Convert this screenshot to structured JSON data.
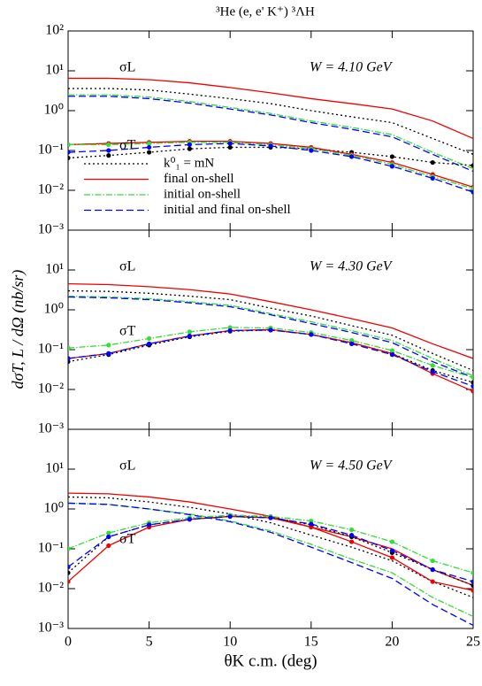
{
  "chart_data": [
    {
      "type": "line",
      "title": "³He (e, e' K⁺) ³ΛH",
      "annotations": [
        "σL",
        "σT",
        "W = 4.10 GeV"
      ],
      "log_y": true,
      "legend": true,
      "x": [
        0,
        2.5,
        5,
        7.5,
        10,
        12.5,
        15,
        17.5,
        20,
        22.5,
        25
      ],
      "xlim": [
        0,
        25
      ],
      "xticks": [
        0,
        5,
        10,
        15,
        20,
        25
      ],
      "ylim": [
        0.001,
        100
      ],
      "yticks": [
        {
          "value": 0.001,
          "label": "10⁻³"
        },
        {
          "value": 0.01,
          "label": "10⁻²"
        },
        {
          "value": 0.1,
          "label": "10⁻¹"
        },
        {
          "value": 1,
          "label": "10⁰"
        },
        {
          "value": 10,
          "label": "10¹"
        },
        {
          "value": 100,
          "label": "10²"
        }
      ],
      "series": [
        {
          "name": "k⁰₁  =  mN",
          "color": "#000000",
          "values": [
            3.6,
            3.6,
            3.3,
            2.6,
            2.0,
            1.5,
            1.0,
            0.7,
            0.5,
            0.2,
            0.08
          ]
        },
        {
          "name": "final on-shell",
          "color": "#ee0000",
          "values": [
            6.5,
            6.5,
            6.0,
            5.0,
            3.8,
            2.8,
            2.0,
            1.5,
            1.1,
            0.55,
            0.2
          ]
        },
        {
          "name": "initial on-shell",
          "color": "#33dd33",
          "values": [
            2.5,
            2.5,
            2.2,
            1.7,
            1.2,
            0.85,
            0.55,
            0.38,
            0.25,
            0.09,
            0.035
          ]
        },
        {
          "name": "initial and final on-shell",
          "color": "#0000ff",
          "values": [
            2.3,
            2.3,
            2.0,
            1.55,
            1.1,
            0.78,
            0.5,
            0.34,
            0.22,
            0.08,
            0.03
          ]
        },
        {
          "color": "#000000",
          "values": [
            0.065,
            0.075,
            0.09,
            0.11,
            0.12,
            0.12,
            0.11,
            0.09,
            0.07,
            0.05,
            0.042
          ]
        },
        {
          "color": "#ee0000",
          "values": [
            0.14,
            0.15,
            0.16,
            0.17,
            0.17,
            0.15,
            0.12,
            0.08,
            0.05,
            0.025,
            0.012
          ]
        },
        {
          "color": "#33dd33",
          "values": [
            0.14,
            0.14,
            0.15,
            0.16,
            0.16,
            0.14,
            0.11,
            0.075,
            0.045,
            0.022,
            0.011
          ]
        },
        {
          "color": "#0000ff",
          "values": [
            0.09,
            0.1,
            0.12,
            0.14,
            0.15,
            0.13,
            0.1,
            0.07,
            0.04,
            0.02,
            0.009
          ]
        }
      ]
    },
    {
      "type": "line",
      "y_label": "dσT, L / dΩ   (nb/sr)",
      "annotations": [
        "σL",
        "σT",
        "W = 4.30 GeV"
      ],
      "log_y": true,
      "legend": false,
      "x": [
        0,
        2.5,
        5,
        7.5,
        10,
        12.5,
        15,
        17.5,
        20,
        22.5,
        25
      ],
      "xlim": [
        0,
        25
      ],
      "xticks": [
        0,
        5,
        10,
        15,
        20,
        25
      ],
      "ylim": [
        0.001,
        100
      ],
      "yticks": [
        {
          "value": 0.001,
          "label": "10⁻³"
        },
        {
          "value": 0.01,
          "label": "10⁻²"
        },
        {
          "value": 0.1,
          "label": "10⁻¹"
        },
        {
          "value": 1,
          "label": "10⁰"
        },
        {
          "value": 10,
          "label": "10¹"
        }
      ],
      "series": [
        {
          "color": "#000000",
          "values": [
            3.0,
            2.9,
            2.6,
            2.2,
            1.8,
            1.1,
            0.7,
            0.4,
            0.23,
            0.08,
            0.03
          ]
        },
        {
          "color": "#ee0000",
          "values": [
            4.5,
            4.3,
            3.8,
            3.2,
            2.5,
            1.6,
            1.0,
            0.6,
            0.35,
            0.14,
            0.06
          ]
        },
        {
          "color": "#33dd33",
          "values": [
            2.2,
            2.1,
            1.9,
            1.6,
            1.3,
            0.8,
            0.5,
            0.3,
            0.17,
            0.06,
            0.022
          ]
        },
        {
          "color": "#0000ff",
          "values": [
            2.1,
            2.0,
            1.8,
            1.5,
            1.2,
            0.75,
            0.45,
            0.27,
            0.15,
            0.05,
            0.02
          ]
        },
        {
          "color": "#000000",
          "values": [
            0.05,
            0.075,
            0.13,
            0.21,
            0.29,
            0.31,
            0.24,
            0.15,
            0.08,
            0.03,
            0.015
          ]
        },
        {
          "color": "#ee0000",
          "values": [
            0.06,
            0.08,
            0.14,
            0.22,
            0.3,
            0.32,
            0.24,
            0.15,
            0.08,
            0.025,
            0.009
          ]
        },
        {
          "color": "#33dd33",
          "values": [
            0.11,
            0.13,
            0.19,
            0.28,
            0.36,
            0.35,
            0.27,
            0.17,
            0.095,
            0.04,
            0.02
          ]
        },
        {
          "color": "#0000ff",
          "values": [
            0.06,
            0.08,
            0.14,
            0.22,
            0.3,
            0.31,
            0.24,
            0.14,
            0.075,
            0.028,
            0.012
          ]
        }
      ]
    },
    {
      "type": "line",
      "x_label": "θK c.m. (deg)",
      "annotations": [
        "σL",
        "σT",
        "W = 4.50 GeV"
      ],
      "log_y": true,
      "legend": false,
      "x": [
        0,
        2.5,
        5,
        7.5,
        10,
        12.5,
        15,
        17.5,
        20,
        22.5,
        25
      ],
      "xlim": [
        0,
        25
      ],
      "xticks": [
        0,
        5,
        10,
        15,
        20,
        25
      ],
      "ylim": [
        0.001,
        100
      ],
      "yticks": [
        {
          "value": 0.001,
          "label": "10⁻³"
        },
        {
          "value": 0.01,
          "label": "10⁻²"
        },
        {
          "value": 0.1,
          "label": "10⁻¹"
        },
        {
          "value": 1,
          "label": "10⁰"
        },
        {
          "value": 10,
          "label": "10¹"
        }
      ],
      "series": [
        {
          "color": "#000000",
          "values": [
            2.0,
            1.9,
            1.5,
            1.1,
            0.75,
            0.45,
            0.22,
            0.11,
            0.05,
            0.015,
            0.006
          ]
        },
        {
          "color": "#ee0000",
          "values": [
            2.5,
            2.4,
            2.0,
            1.5,
            1.0,
            0.65,
            0.35,
            0.2,
            0.1,
            0.03,
            0.012
          ]
        },
        {
          "color": "#33dd33",
          "values": [
            1.4,
            1.3,
            1.0,
            0.75,
            0.5,
            0.28,
            0.13,
            0.055,
            0.025,
            0.006,
            0.002
          ]
        },
        {
          "color": "#0000ff",
          "values": [
            1.4,
            1.3,
            1.0,
            0.72,
            0.48,
            0.26,
            0.11,
            0.045,
            0.018,
            0.004,
            0.0012
          ]
        },
        {
          "color": "#000000",
          "values": [
            0.025,
            0.2,
            0.4,
            0.55,
            0.65,
            0.62,
            0.4,
            0.2,
            0.08,
            0.03,
            0.012
          ]
        },
        {
          "color": "#ee0000",
          "values": [
            0.015,
            0.12,
            0.35,
            0.55,
            0.65,
            0.6,
            0.35,
            0.15,
            0.06,
            0.015,
            0.009
          ]
        },
        {
          "color": "#33dd33",
          "values": [
            0.1,
            0.25,
            0.45,
            0.6,
            0.7,
            0.65,
            0.5,
            0.3,
            0.15,
            0.05,
            0.025
          ]
        },
        {
          "color": "#0000ff",
          "values": [
            0.035,
            0.2,
            0.4,
            0.55,
            0.65,
            0.6,
            0.42,
            0.22,
            0.09,
            0.03,
            0.015
          ]
        }
      ]
    }
  ]
}
